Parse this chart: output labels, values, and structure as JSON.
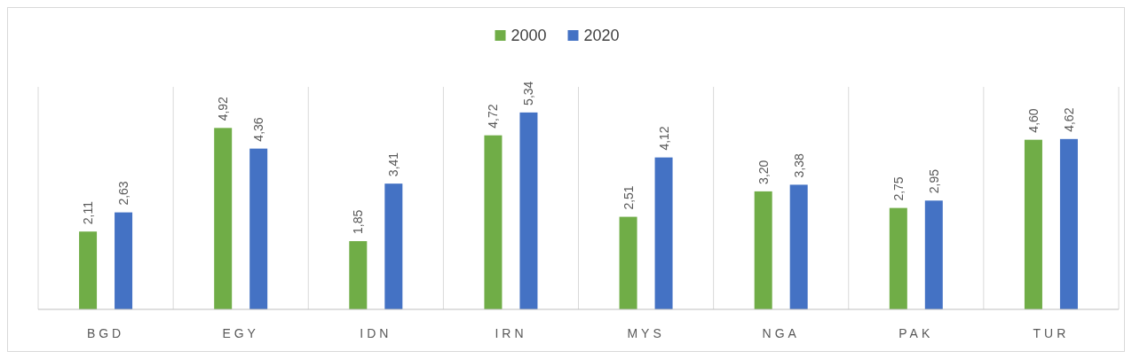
{
  "chart_data": {
    "type": "bar",
    "categories": [
      "BGD",
      "EGY",
      "IDN",
      "IRN",
      "MYS",
      "NGA",
      "PAK",
      "TUR"
    ],
    "series": [
      {
        "name": "2000",
        "color": "#70ad47",
        "values": [
          2.11,
          4.92,
          1.85,
          4.72,
          2.51,
          3.2,
          2.75,
          4.6
        ],
        "value_labels": [
          "2,11",
          "4,92",
          "1,85",
          "4,72",
          "2,51",
          "3,20",
          "2,75",
          "4,60"
        ]
      },
      {
        "name": "2020",
        "color": "#4472c4",
        "values": [
          2.63,
          4.36,
          3.41,
          5.34,
          4.12,
          3.38,
          2.95,
          4.62
        ],
        "value_labels": [
          "2,63",
          "4,36",
          "3,41",
          "5,34",
          "4,12",
          "3,38",
          "2,95",
          "4,62"
        ]
      }
    ],
    "grid": "x",
    "legend": "top"
  }
}
